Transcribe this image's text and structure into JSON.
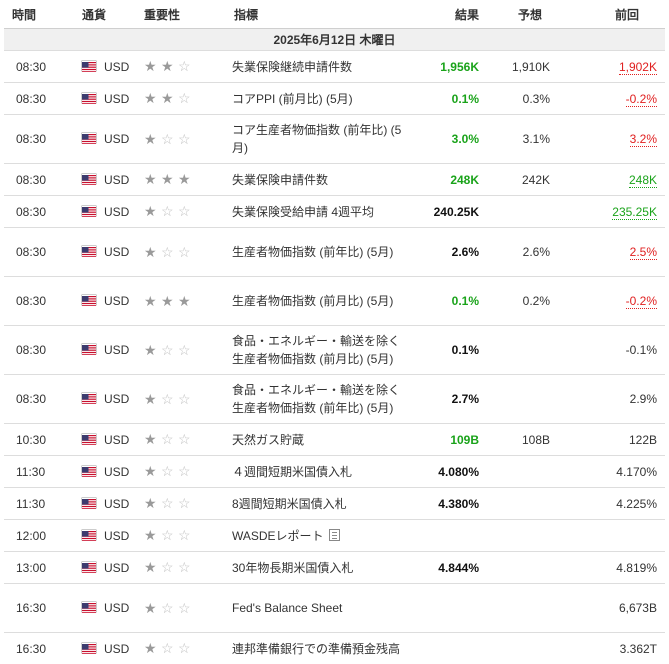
{
  "header": {
    "time": "時間",
    "currency": "通貨",
    "importance": "重要性",
    "indicator": "指標",
    "actual": "結果",
    "forecast": "予想",
    "previous": "前回"
  },
  "date_label": "2025年6月12日 木曜日",
  "colors": {
    "positive": "#1aa31a",
    "negative": "#e02020",
    "star_full": "#9a9a9a",
    "star_empty": "#c0c0c0"
  },
  "events": [
    {
      "time": "08:30",
      "currency": "USD",
      "stars": 2,
      "event": "失業保険継続申請件数",
      "actual": "1,956K",
      "actual_color": "green",
      "forecast": "1,910K",
      "previous": "1,902K",
      "prev_style": "rev-down"
    },
    {
      "time": "08:30",
      "currency": "USD",
      "stars": 2,
      "event": "コアPPI (前月比) (5月)",
      "actual": "0.1%",
      "actual_color": "green",
      "forecast": "0.3%",
      "previous": "-0.2%",
      "prev_style": "rev-down"
    },
    {
      "time": "08:30",
      "currency": "USD",
      "stars": 1,
      "event": "コア生産者物価指数 (前年比) (5月)",
      "actual": "3.0%",
      "actual_color": "green",
      "forecast": "3.1%",
      "previous": "3.2%",
      "prev_style": "rev-down"
    },
    {
      "time": "08:30",
      "currency": "USD",
      "stars": 3,
      "event": "失業保険申請件数",
      "actual": "248K",
      "actual_color": "green",
      "forecast": "242K",
      "previous": "248K",
      "prev_style": "rev-up"
    },
    {
      "time": "08:30",
      "currency": "USD",
      "stars": 1,
      "event": "失業保険受給申請 4週平均",
      "actual": "240.25K",
      "actual_color": "black",
      "forecast": "",
      "previous": "235.25K",
      "prev_style": "rev-up"
    },
    {
      "time": "08:30",
      "currency": "USD",
      "stars": 1,
      "event": "生産者物価指数 (前年比) (5月)",
      "actual": "2.6%",
      "actual_color": "black",
      "forecast": "2.6%",
      "previous": "2.5%",
      "prev_style": "rev-down"
    },
    {
      "time": "08:30",
      "currency": "USD",
      "stars": 3,
      "event": "生産者物価指数 (前月比) (5月)",
      "actual": "0.1%",
      "actual_color": "green",
      "forecast": "0.2%",
      "previous": "-0.2%",
      "prev_style": "rev-down"
    },
    {
      "time": "08:30",
      "currency": "USD",
      "stars": 1,
      "event": "食品・エネルギー・輸送を除く生産者物価指数 (前月比) (5月)",
      "actual": "0.1%",
      "actual_color": "black",
      "forecast": "",
      "previous": "-0.1%",
      "prev_style": ""
    },
    {
      "time": "08:30",
      "currency": "USD",
      "stars": 1,
      "event": "食品・エネルギー・輸送を除く生産者物価指数 (前年比) (5月)",
      "actual": "2.7%",
      "actual_color": "black",
      "forecast": "",
      "previous": "2.9%",
      "prev_style": ""
    },
    {
      "time": "10:30",
      "currency": "USD",
      "stars": 1,
      "event": "天然ガス貯蔵",
      "actual": "109B",
      "actual_color": "green",
      "forecast": "108B",
      "previous": "122B",
      "prev_style": ""
    },
    {
      "time": "11:30",
      "currency": "USD",
      "stars": 1,
      "event": "４週間短期米国債入札",
      "actual": "4.080%",
      "actual_color": "black",
      "forecast": "",
      "previous": "4.170%",
      "prev_style": ""
    },
    {
      "time": "11:30",
      "currency": "USD",
      "stars": 1,
      "event": "8週間短期米国債入札",
      "actual": "4.380%",
      "actual_color": "black",
      "forecast": "",
      "previous": "4.225%",
      "prev_style": ""
    },
    {
      "time": "12:00",
      "currency": "USD",
      "stars": 1,
      "event": "WASDEレポート",
      "doc_icon": "document-icon",
      "actual": "",
      "actual_color": "black",
      "forecast": "",
      "previous": "",
      "prev_style": ""
    },
    {
      "time": "13:00",
      "currency": "USD",
      "stars": 1,
      "event": "30年物長期米国債入札",
      "actual": "4.844%",
      "actual_color": "black",
      "forecast": "",
      "previous": "4.819%",
      "prev_style": ""
    },
    {
      "time": "16:30",
      "currency": "USD",
      "stars": 1,
      "event": "Fed's Balance Sheet",
      "actual": "",
      "actual_color": "black",
      "forecast": "",
      "previous": "6,673B",
      "prev_style": ""
    },
    {
      "time": "16:30",
      "currency": "USD",
      "stars": 1,
      "event": "連邦準備銀行での準備預金残高",
      "actual": "",
      "actual_color": "black",
      "forecast": "",
      "previous": "3.362T",
      "prev_style": ""
    }
  ]
}
